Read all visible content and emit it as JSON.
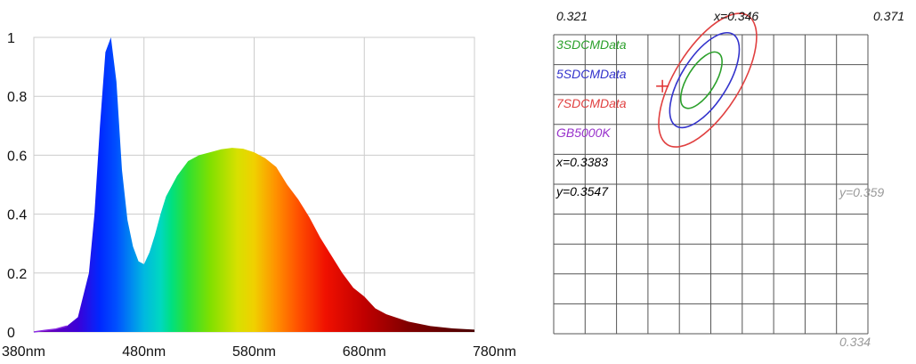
{
  "chart_data": [
    {
      "type": "area",
      "xlabel": "",
      "ylabel": "",
      "ylim": [
        0,
        1
      ],
      "xlim": [
        380,
        780
      ],
      "grid": true,
      "x_tick_labels": [
        "380nm",
        "480nm",
        "580nm",
        "680nm",
        "780nm"
      ],
      "y_tick_labels": [
        "0",
        "0.2",
        "0.4",
        "0.6",
        "0.8",
        "1"
      ],
      "series": [
        {
          "x": [
            380,
            390,
            400,
            410,
            420,
            430,
            435,
            440,
            445,
            450,
            455,
            460,
            465,
            470,
            475,
            480,
            485,
            490,
            495,
            500,
            510,
            520,
            530,
            540,
            550,
            560,
            570,
            580,
            590,
            600,
            610,
            620,
            630,
            640,
            650,
            660,
            670,
            680,
            690,
            700,
            720,
            740,
            760,
            780
          ],
          "values": [
            0.0,
            0.005,
            0.01,
            0.02,
            0.05,
            0.2,
            0.4,
            0.7,
            0.95,
            1.0,
            0.85,
            0.55,
            0.38,
            0.29,
            0.24,
            0.23,
            0.27,
            0.33,
            0.4,
            0.46,
            0.53,
            0.58,
            0.6,
            0.61,
            0.62,
            0.625,
            0.622,
            0.61,
            0.59,
            0.56,
            0.5,
            0.45,
            0.39,
            0.32,
            0.26,
            0.2,
            0.15,
            0.12,
            0.08,
            0.06,
            0.035,
            0.02,
            0.012,
            0.008
          ]
        }
      ]
    },
    {
      "type": "scatter",
      "top_labels": [
        "0.321",
        "x=0.346",
        "0.371"
      ],
      "y_top_label": "y=0.359",
      "y_bottom_label": "0.334",
      "xlim": [
        0.321,
        0.371
      ],
      "ylim": [
        0.334,
        0.359
      ],
      "grid": true,
      "legend": [
        {
          "label": "3SDCMData",
          "color": "#2ca02c"
        },
        {
          "label": "5SDCMData",
          "color": "#3333cc"
        },
        {
          "label": "7SDCMData",
          "color": "#e04040"
        },
        {
          "label": "GB5000K",
          "color": "#9933cc"
        },
        {
          "label": "x=0.3383",
          "color": "#000000"
        },
        {
          "label": "y=0.3547",
          "color": "#000000"
        }
      ],
      "point": {
        "x": 0.3383,
        "y": 0.3547,
        "color": "#e03030"
      },
      "ellipses": [
        {
          "name": "3SDCMData",
          "color": "#2ca02c",
          "cx": 0.3445,
          "cy": 0.3552,
          "a": 0.0051,
          "b": 0.0022,
          "angle_deg": 58
        },
        {
          "name": "5SDCMData",
          "color": "#3333cc",
          "cx": 0.345,
          "cy": 0.3552,
          "a": 0.0086,
          "b": 0.0037,
          "angle_deg": 58
        },
        {
          "name": "7SDCMData",
          "color": "#e04040",
          "cx": 0.3455,
          "cy": 0.3552,
          "a": 0.0121,
          "b": 0.0052,
          "angle_deg": 58
        }
      ]
    }
  ]
}
